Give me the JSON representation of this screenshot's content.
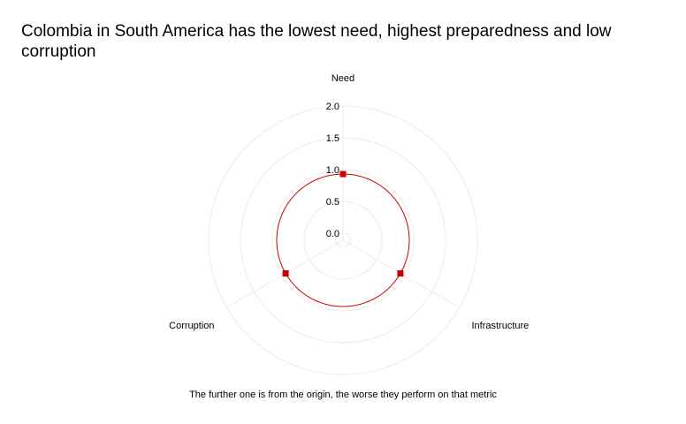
{
  "chart_data": {
    "type": "radar",
    "title": "Colombia in South America has the lowest need, highest preparedness and low corruption",
    "caption": "The further one is from the origin, the worse they perform on that metric",
    "axes": [
      "Need",
      "Infrastructure",
      "Corruption"
    ],
    "rlim": [
      0,
      2
    ],
    "rticks": [
      "0.0",
      "0.5",
      "1.0",
      "1.5",
      "2.0"
    ],
    "grid": true,
    "legend": "none",
    "series": [
      {
        "values": [
          0.93,
          0.93,
          0.93
        ],
        "color": "#cc0000",
        "marker": "square"
      }
    ]
  }
}
